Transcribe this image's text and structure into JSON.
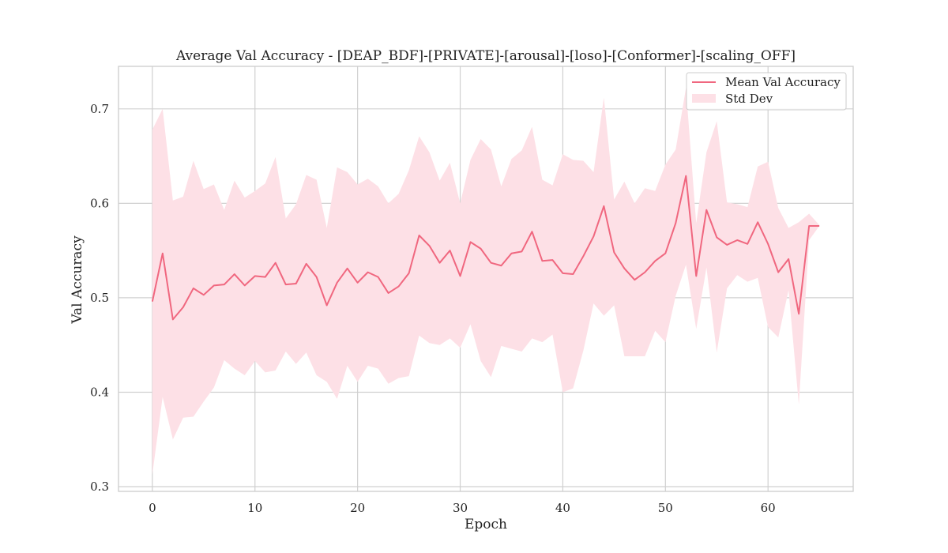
{
  "chart_data": {
    "type": "line",
    "title": "Average Val Accuracy - [DEAP_BDF]-[PRIVATE]-[arousal]-[loso]-[Conformer]-[scaling_OFF]",
    "xlabel": "Epoch",
    "ylabel": "Val Accuracy",
    "xlim": [
      -3.3,
      68.3
    ],
    "ylim": [
      0.295,
      0.745
    ],
    "xticks": [
      0,
      10,
      20,
      30,
      40,
      50,
      60
    ],
    "yticks": [
      0.3,
      0.4,
      0.5,
      0.6,
      0.7
    ],
    "xtick_labels": [
      "0",
      "10",
      "20",
      "30",
      "40",
      "50",
      "60"
    ],
    "ytick_labels": [
      "0.3",
      "0.4",
      "0.5",
      "0.6",
      "0.7"
    ],
    "grid": true,
    "legend_position": "top-right",
    "colors": {
      "line": "#f0677f",
      "band": "#fde0e6",
      "grid": "#d0d0d0",
      "frame": "#cccccc"
    },
    "series": [
      {
        "name": "Mean Val Accuracy",
        "x": [
          0,
          1,
          2,
          3,
          4,
          5,
          6,
          7,
          8,
          9,
          10,
          11,
          12,
          13,
          14,
          15,
          16,
          17,
          18,
          19,
          20,
          21,
          22,
          23,
          24,
          25,
          26,
          27,
          28,
          29,
          30,
          31,
          32,
          33,
          34,
          35,
          36,
          37,
          38,
          39,
          40,
          41,
          42,
          43,
          44,
          45,
          46,
          47,
          48,
          49,
          50,
          51,
          52,
          53,
          54,
          55,
          56,
          57,
          58,
          59,
          60,
          61,
          62,
          63,
          64,
          65
        ],
        "y": [
          0.496,
          0.547,
          0.477,
          0.49,
          0.51,
          0.503,
          0.513,
          0.514,
          0.525,
          0.513,
          0.523,
          0.522,
          0.537,
          0.514,
          0.515,
          0.536,
          0.522,
          0.492,
          0.516,
          0.531,
          0.516,
          0.527,
          0.522,
          0.505,
          0.512,
          0.526,
          0.566,
          0.555,
          0.537,
          0.55,
          0.523,
          0.559,
          0.552,
          0.537,
          0.534,
          0.547,
          0.549,
          0.57,
          0.539,
          0.54,
          0.526,
          0.525,
          0.544,
          0.565,
          0.597,
          0.548,
          0.531,
          0.519,
          0.527,
          0.539,
          0.547,
          0.579,
          0.629,
          0.523,
          0.593,
          0.564,
          0.556,
          0.561,
          0.557,
          0.58,
          0.557,
          0.527,
          0.541,
          0.483,
          0.576,
          0.576
        ]
      },
      {
        "name": "Std Dev",
        "x": [
          0,
          1,
          2,
          3,
          4,
          5,
          6,
          7,
          8,
          9,
          10,
          11,
          12,
          13,
          14,
          15,
          16,
          17,
          18,
          19,
          20,
          21,
          22,
          23,
          24,
          25,
          26,
          27,
          28,
          29,
          30,
          31,
          32,
          33,
          34,
          35,
          36,
          37,
          38,
          39,
          40,
          41,
          42,
          43,
          44,
          45,
          46,
          47,
          48,
          49,
          50,
          51,
          52,
          53,
          54,
          55,
          56,
          57,
          58,
          59,
          60,
          61,
          62,
          63,
          64,
          65
        ],
        "lower": [
          0.313,
          0.395,
          0.35,
          0.373,
          0.374,
          0.39,
          0.405,
          0.434,
          0.425,
          0.418,
          0.433,
          0.421,
          0.423,
          0.443,
          0.43,
          0.442,
          0.418,
          0.411,
          0.393,
          0.428,
          0.411,
          0.428,
          0.425,
          0.409,
          0.415,
          0.417,
          0.46,
          0.452,
          0.45,
          0.457,
          0.447,
          0.472,
          0.433,
          0.416,
          0.449,
          0.446,
          0.443,
          0.457,
          0.453,
          0.461,
          0.4,
          0.404,
          0.444,
          0.494,
          0.481,
          0.492,
          0.438,
          0.438,
          0.438,
          0.465,
          0.453,
          0.502,
          0.535,
          0.467,
          0.532,
          0.442,
          0.51,
          0.524,
          0.517,
          0.521,
          0.469,
          0.458,
          0.508,
          0.387,
          0.561,
          0.576
        ],
        "upper": [
          0.678,
          0.7,
          0.603,
          0.607,
          0.645,
          0.615,
          0.62,
          0.593,
          0.624,
          0.606,
          0.613,
          0.621,
          0.649,
          0.584,
          0.599,
          0.63,
          0.625,
          0.574,
          0.638,
          0.633,
          0.62,
          0.626,
          0.618,
          0.6,
          0.61,
          0.635,
          0.671,
          0.654,
          0.624,
          0.643,
          0.6,
          0.646,
          0.668,
          0.657,
          0.618,
          0.647,
          0.656,
          0.681,
          0.625,
          0.619,
          0.652,
          0.646,
          0.645,
          0.633,
          0.712,
          0.604,
          0.623,
          0.6,
          0.616,
          0.613,
          0.641,
          0.657,
          0.722,
          0.579,
          0.654,
          0.687,
          0.601,
          0.599,
          0.596,
          0.639,
          0.644,
          0.595,
          0.574,
          0.58,
          0.589,
          0.577
        ]
      }
    ]
  }
}
